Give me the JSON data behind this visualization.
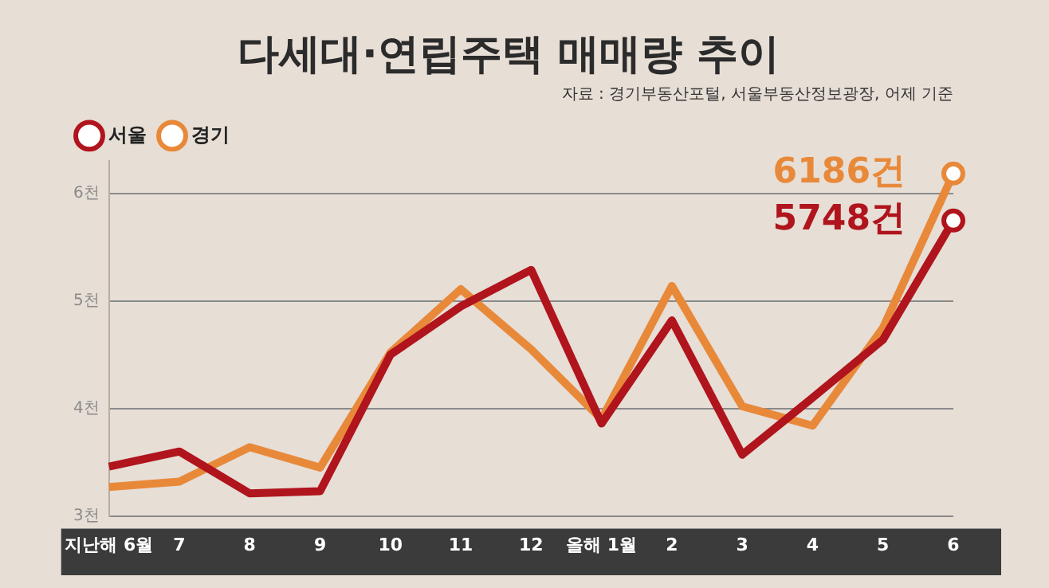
{
  "chart_data": {
    "type": "line",
    "title": "다세대·연립주택 매매량 추이",
    "annotations": [
      "자료 : 경기부동산포털, 서울부동산정보광장, 어제 기준",
      {
        "text": "6186건",
        "x": "6",
        "y": 6.186
      },
      {
        "text": "5748건",
        "x": "6",
        "y": 5.748
      }
    ],
    "categories": [
      "지난해 6월",
      "7",
      "8",
      "9",
      "10",
      "11",
      "12",
      "올해 1월",
      "2",
      "3",
      "4",
      "5",
      "6"
    ],
    "series": [
      {
        "name": "서울",
        "color": "#b0141c",
        "values": [
          3.46,
          3.6,
          3.21,
          3.23,
          4.5,
          4.95,
          5.29,
          3.86,
          4.82,
          3.57,
          4.1,
          4.64,
          5.748
        ]
      },
      {
        "name": "경기",
        "color": "#e8893a",
        "values": [
          3.27,
          3.32,
          3.64,
          3.45,
          4.52,
          5.11,
          4.55,
          3.9,
          5.14,
          4.02,
          3.84,
          4.75,
          6.186
        ]
      }
    ],
    "ylim": [
      3,
      6.3
    ],
    "yticks": [
      {
        "value": 3,
        "label": "3천"
      },
      {
        "value": 4,
        "label": "4천"
      },
      {
        "value": 5,
        "label": "5천"
      },
      {
        "value": 6,
        "label": "6천"
      }
    ],
    "grid": "y",
    "legend": "top left",
    "line_style": "solid"
  }
}
